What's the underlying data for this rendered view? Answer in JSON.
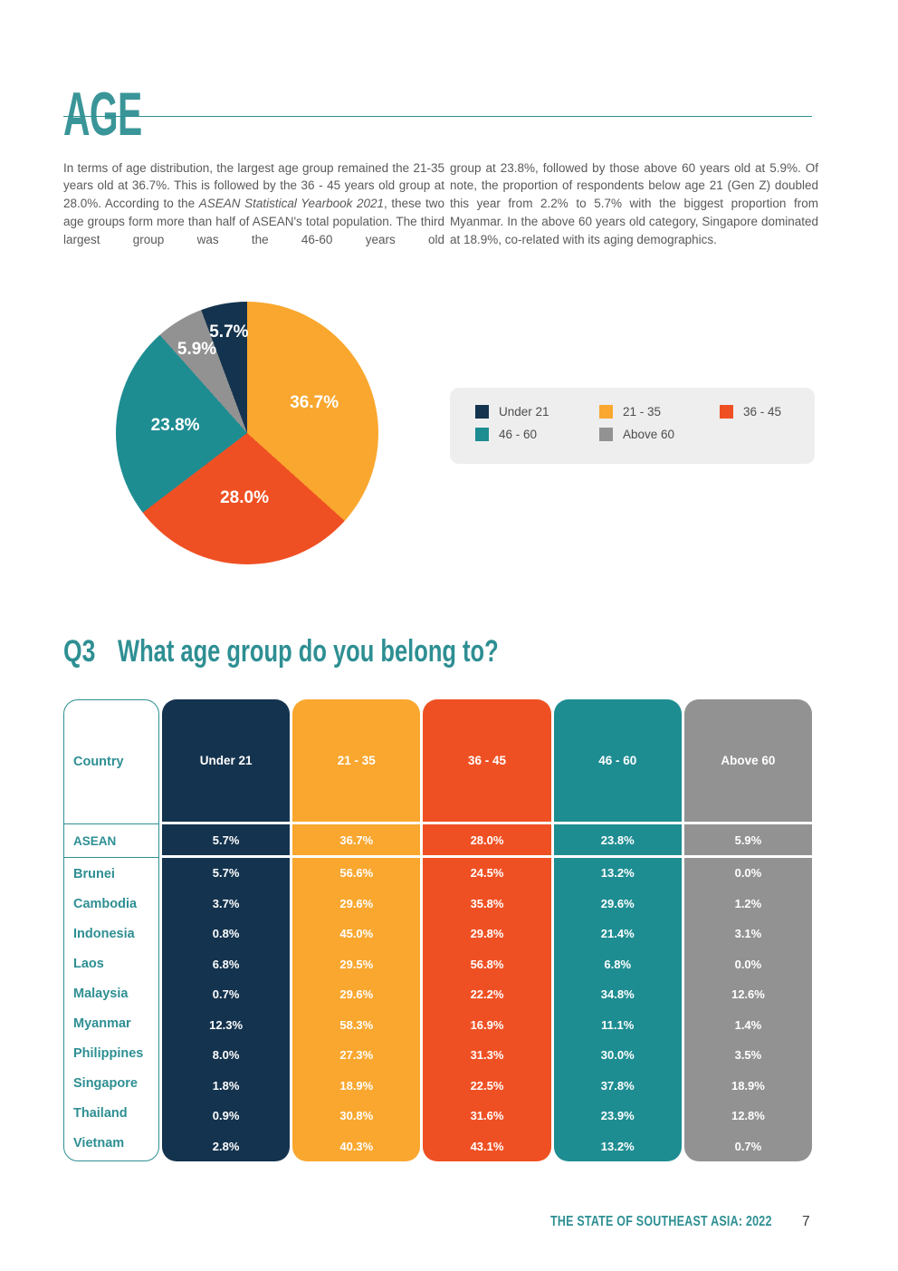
{
  "page": {
    "title": "AGE",
    "footer": {
      "report_title": "THE STATE OF SOUTHEAST ASIA: 2022",
      "page_number": "7"
    }
  },
  "colors": {
    "heading_teal": "#3A9598",
    "rule_teal": "#2E8F93",
    "navy": "#14334E",
    "amber": "#F9A72F",
    "orange_red": "#EF5023",
    "teal": "#1E8D92",
    "gray": "#929292",
    "legend_bg": "#EEEEEE",
    "body_text": "#58595B"
  },
  "intro": {
    "col1_part1": "In terms of age distribution, the largest age group remained the 21-35 years old at 36.7%. This is followed by the 36 - 45 years old group at 28.0%. According to the ",
    "col1_italic": "ASEAN Statistical Yearbook 2021",
    "col1_part2": ", these two age groups form more than half of ASEAN's total population. The third largest group was the 46-60 years old",
    "col2": "group at 23.8%, followed by those above 60 years old at 5.9%. Of note, the proportion of respondents below age 21 (Gen Z) doubled this year from 2.2% to 5.7% with the biggest proportion from Myanmar. In the above 60 years old category, Singapore dominated at 18.9%, co-related with its aging demographics."
  },
  "question": {
    "number": "Q3",
    "text": "What age group do you belong to?"
  },
  "chart_data": {
    "type": "pie",
    "title": "Age distribution of respondents",
    "start_angle_deg": 0,
    "slices": [
      {
        "label": "21 - 35",
        "value": 36.7,
        "display": "36.7%",
        "color": "#F9A72F",
        "label_r": 0.56
      },
      {
        "label": "36 - 45",
        "value": 28.0,
        "display": "28.0%",
        "color": "#EF5023",
        "label_r": 0.5
      },
      {
        "label": "46 - 60",
        "value": 23.8,
        "display": "23.8%",
        "color": "#1E8D92",
        "label_r": 0.55
      },
      {
        "label": "Above 60",
        "value": 5.9,
        "display": "5.9%",
        "color": "#929292",
        "label_r": 0.74
      },
      {
        "label": "Under 21",
        "value": 5.7,
        "display": "5.7%",
        "color": "#14334E",
        "label_r": 0.78
      }
    ],
    "legend_position": "right",
    "legend": [
      {
        "label": "Under 21",
        "color": "#14334E"
      },
      {
        "label": "21 - 35",
        "color": "#F9A72F"
      },
      {
        "label": "36 - 45",
        "color": "#EF5023"
      },
      {
        "label": "46 - 60",
        "color": "#1E8D92"
      },
      {
        "label": "Above 60",
        "color": "#929292"
      }
    ]
  },
  "table": {
    "country_header": "Country",
    "columns": [
      {
        "label": "Under 21",
        "color": "#14334E"
      },
      {
        "label": "21 - 35",
        "color": "#F9A72F"
      },
      {
        "label": "36 - 45",
        "color": "#EF5023"
      },
      {
        "label": "46 - 60",
        "color": "#1E8D92"
      },
      {
        "label": "Above 60",
        "color": "#929292"
      }
    ],
    "asean_row": {
      "country": "ASEAN",
      "values": [
        "5.7%",
        "36.7%",
        "28.0%",
        "23.8%",
        "5.9%"
      ]
    },
    "rows": [
      {
        "country": "Brunei",
        "values": [
          "5.7%",
          "56.6%",
          "24.5%",
          "13.2%",
          "0.0%"
        ]
      },
      {
        "country": "Cambodia",
        "values": [
          "3.7%",
          "29.6%",
          "35.8%",
          "29.6%",
          "1.2%"
        ]
      },
      {
        "country": "Indonesia",
        "values": [
          "0.8%",
          "45.0%",
          "29.8%",
          "21.4%",
          "3.1%"
        ]
      },
      {
        "country": "Laos",
        "values": [
          "6.8%",
          "29.5%",
          "56.8%",
          "6.8%",
          "0.0%"
        ]
      },
      {
        "country": "Malaysia",
        "values": [
          "0.7%",
          "29.6%",
          "22.2%",
          "34.8%",
          "12.6%"
        ]
      },
      {
        "country": "Myanmar",
        "values": [
          "12.3%",
          "58.3%",
          "16.9%",
          "11.1%",
          "1.4%"
        ]
      },
      {
        "country": "Philippines",
        "values": [
          "8.0%",
          "27.3%",
          "31.3%",
          "30.0%",
          "3.5%"
        ]
      },
      {
        "country": "Singapore",
        "values": [
          "1.8%",
          "18.9%",
          "22.5%",
          "37.8%",
          "18.9%"
        ]
      },
      {
        "country": "Thailand",
        "values": [
          "0.9%",
          "30.8%",
          "31.6%",
          "23.9%",
          "12.8%"
        ]
      },
      {
        "country": "Vietnam",
        "values": [
          "2.8%",
          "40.3%",
          "43.1%",
          "13.2%",
          "0.7%"
        ]
      }
    ]
  }
}
